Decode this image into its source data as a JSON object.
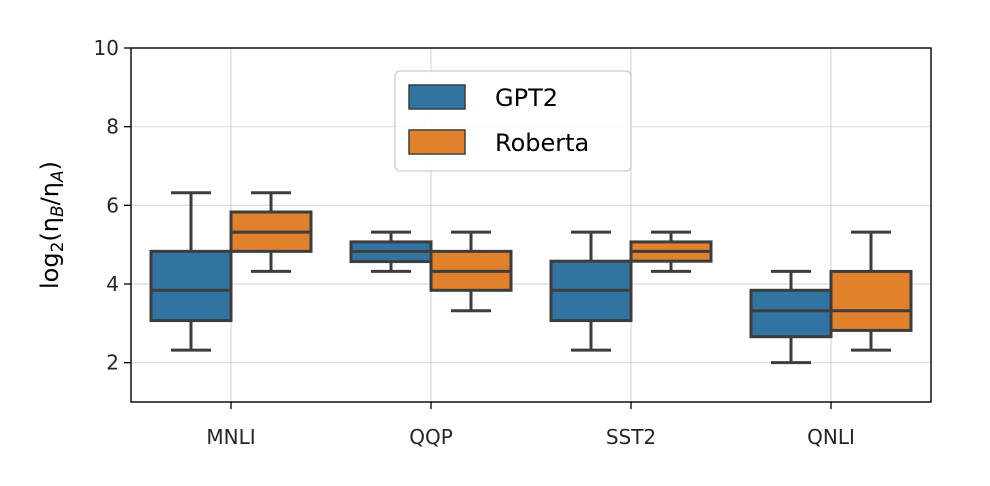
{
  "chart_data": {
    "type": "box",
    "ylabel": "log2(ηB/ηA)",
    "ylim": [
      1,
      10
    ],
    "yticks": [
      2,
      4,
      6,
      8,
      10
    ],
    "grid": true,
    "legend_position": "top-center",
    "categories": [
      "MNLI",
      "QQP",
      "SST2",
      "QNLI"
    ],
    "series": [
      {
        "name": "GPT2",
        "color": "#3274a1",
        "boxes": [
          {
            "whisker_low": 2.32,
            "q1": 3.07,
            "median": 3.84,
            "q3": 4.83,
            "whisker_high": 6.32
          },
          {
            "whisker_low": 4.32,
            "q1": 4.57,
            "median": 4.83,
            "q3": 5.07,
            "whisker_high": 5.32
          },
          {
            "whisker_low": 2.32,
            "q1": 3.07,
            "median": 3.84,
            "q3": 4.58,
            "whisker_high": 5.32
          },
          {
            "whisker_low": 2.0,
            "q1": 2.66,
            "median": 3.32,
            "q3": 3.84,
            "whisker_high": 4.32
          }
        ]
      },
      {
        "name": "Roberta",
        "color": "#e1812c",
        "boxes": [
          {
            "whisker_low": 4.32,
            "q1": 4.83,
            "median": 5.32,
            "q3": 5.83,
            "whisker_high": 6.32
          },
          {
            "whisker_low": 3.32,
            "q1": 3.84,
            "median": 4.32,
            "q3": 4.83,
            "whisker_high": 5.32
          },
          {
            "whisker_low": 4.32,
            "q1": 4.58,
            "median": 4.83,
            "q3": 5.07,
            "whisker_high": 5.32
          },
          {
            "whisker_low": 2.32,
            "q1": 2.82,
            "median": 3.32,
            "q3": 4.32,
            "whisker_high": 5.32
          }
        ]
      }
    ]
  }
}
